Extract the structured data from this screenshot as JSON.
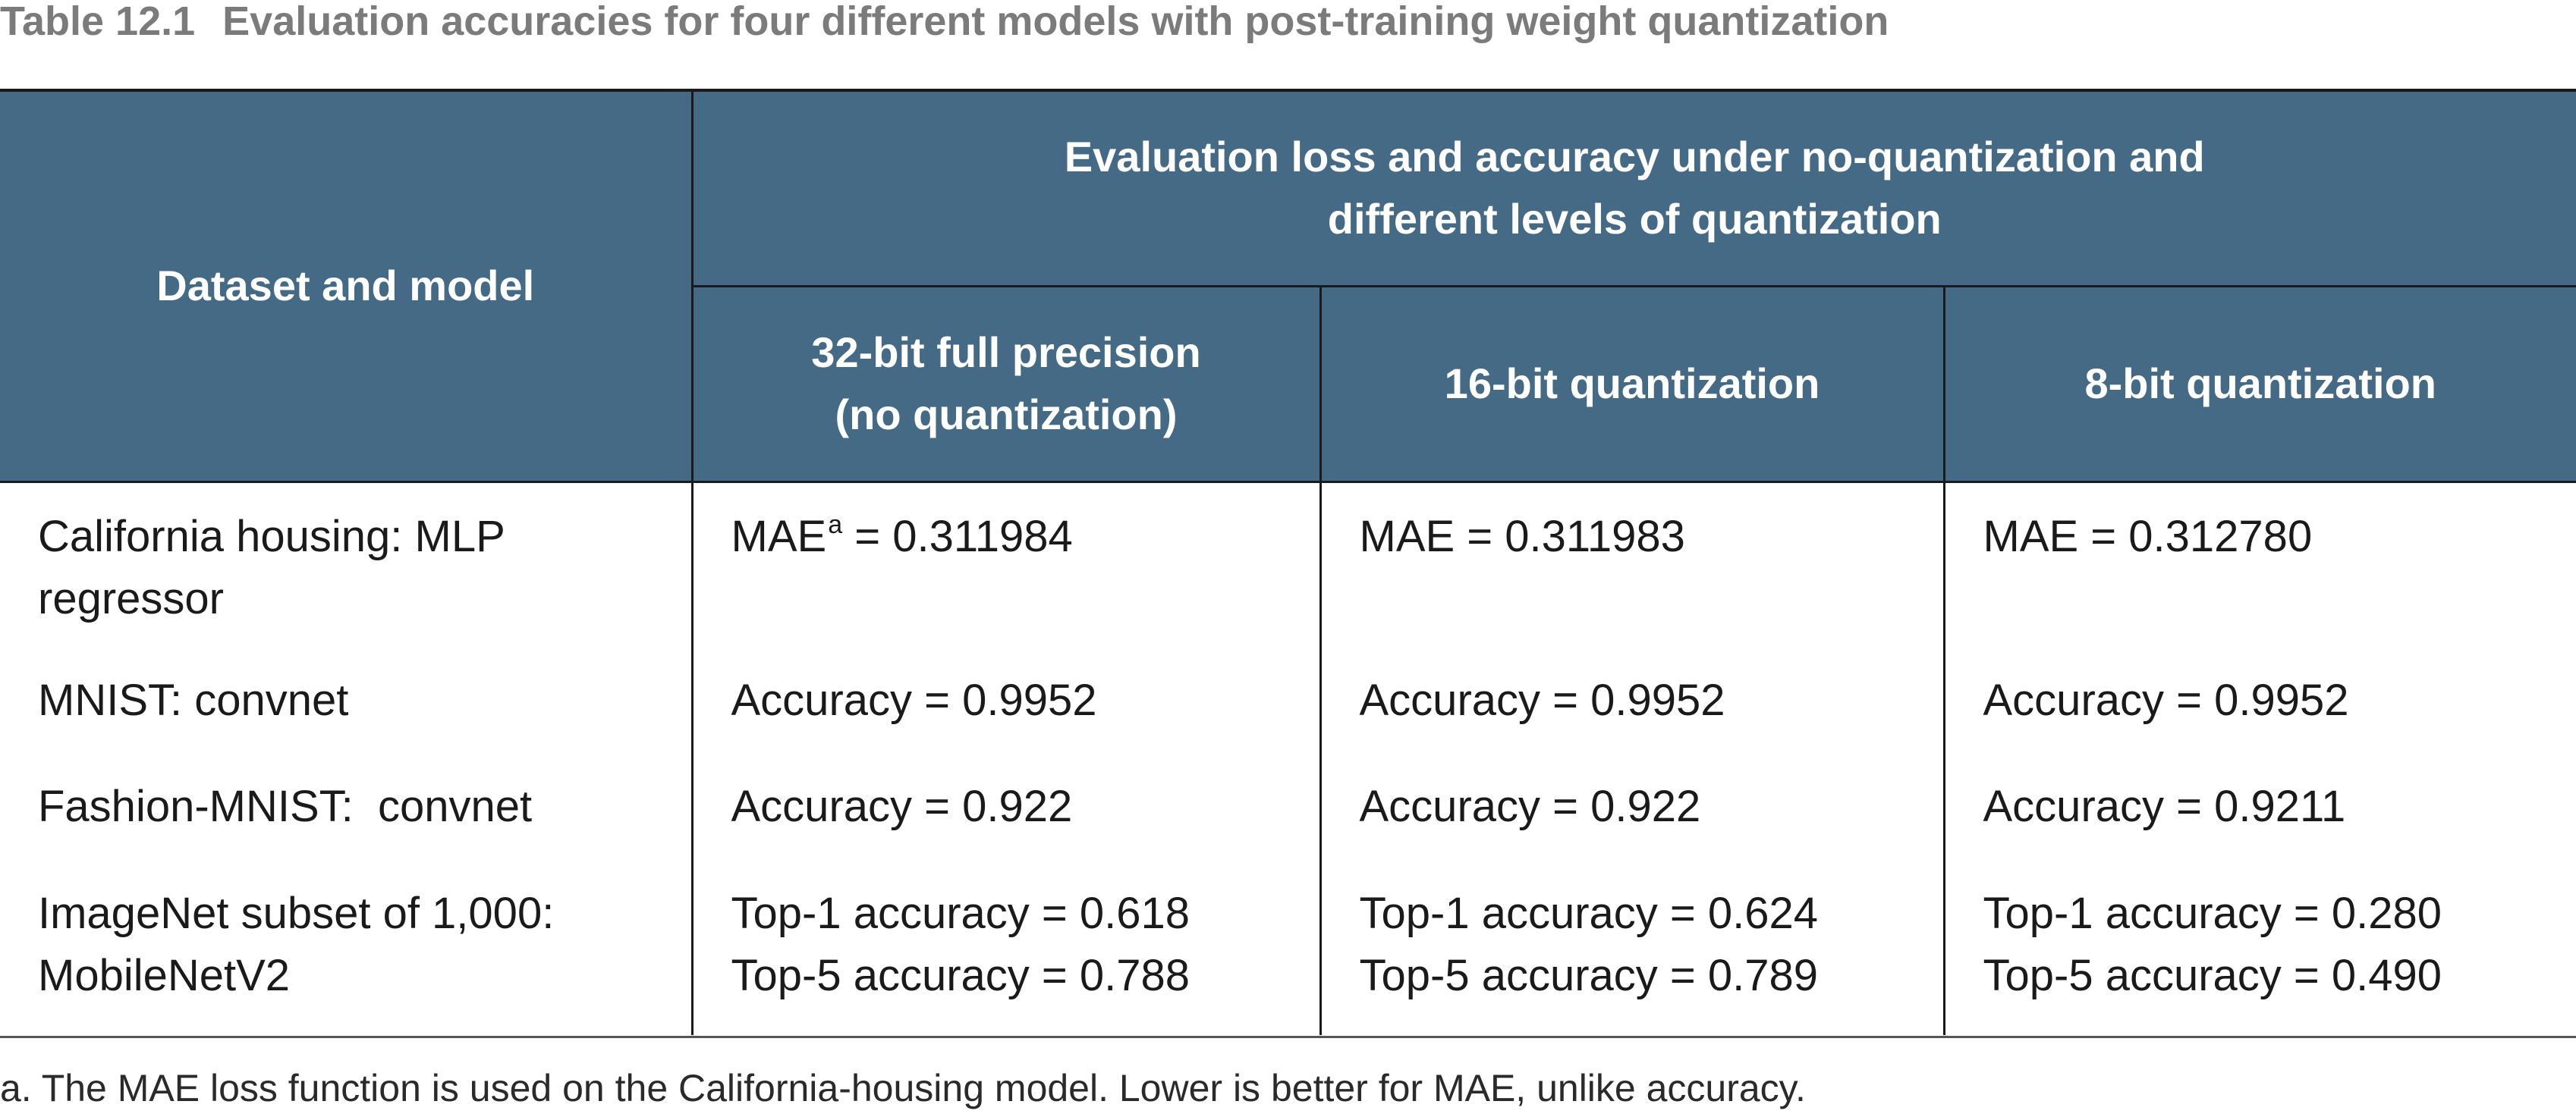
{
  "caption": {
    "number": "Table 12.1",
    "title": "Evaluation accuracies for four different models with post-training weight quantization"
  },
  "header": {
    "dataset_model": "Dataset and model",
    "group": "Evaluation loss and accuracy under no-quantization and different levels of quantization",
    "group_line1": "Evaluation loss and accuracy under no-quantization and",
    "group_line2": "different levels of quantization",
    "columns": [
      {
        "line1": "32-bit full precision",
        "line2": "(no quantization)"
      },
      {
        "line1": "16-bit quantization"
      },
      {
        "line1": "8-bit quantization"
      }
    ]
  },
  "rows": [
    {
      "model_line1": "California housing: MLP",
      "model_line2": "regressor",
      "cells": [
        {
          "line1_prefix": "MAE",
          "footnote_mark": "a",
          "line1_suffix": " = 0.311984"
        },
        {
          "line1": "MAE = 0.311983"
        },
        {
          "line1": "MAE = 0.312780"
        }
      ]
    },
    {
      "model_line1": "MNIST: convnet",
      "cells": [
        {
          "line1": "Accuracy = 0.9952"
        },
        {
          "line1": "Accuracy = 0.9952"
        },
        {
          "line1": "Accuracy = 0.9952"
        }
      ]
    },
    {
      "model_line1": "Fashion-MNIST:  convnet",
      "cells": [
        {
          "line1": "Accuracy = 0.922"
        },
        {
          "line1": "Accuracy = 0.922"
        },
        {
          "line1": "Accuracy = 0.9211"
        }
      ]
    },
    {
      "model_line1": "ImageNet subset of 1,000:",
      "model_line2": "MobileNetV2",
      "cells": [
        {
          "line1": "Top-1 accuracy = 0.618",
          "line2": "Top-5 accuracy = 0.788"
        },
        {
          "line1": "Top-1 accuracy = 0.624",
          "line2": "Top-5 accuracy = 0.789"
        },
        {
          "line1": "Top-1 accuracy = 0.280",
          "line2": "Top-5 accuracy = 0.490"
        }
      ]
    }
  ],
  "footnote": "a. The MAE loss function is used on the California-housing model. Lower is better for MAE, unlike accuracy.",
  "colors": {
    "header_bg": "#456a85",
    "header_text": "#ffffff",
    "caption_text": "#7b7b7b"
  }
}
